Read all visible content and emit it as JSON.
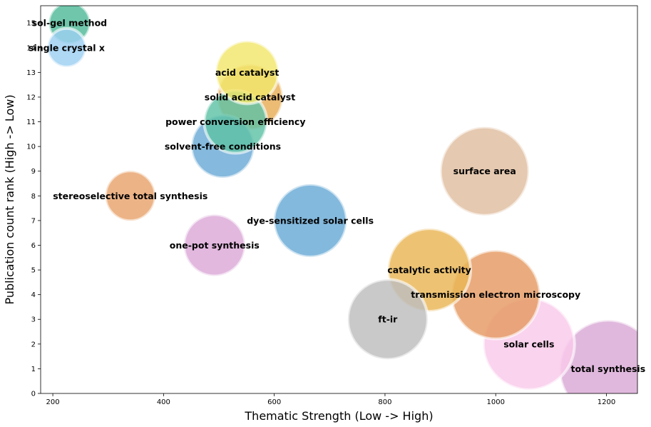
{
  "chart_data": {
    "type": "scatter",
    "title": "",
    "xlabel": "Thematic Strength (Low -> High)",
    "ylabel": "Publication count rank (High -> Low)",
    "xlim": [
      178,
      1256
    ],
    "ylim": [
      0,
      15.7
    ],
    "xticks": [
      200,
      400,
      600,
      800,
      1000,
      1200
    ],
    "yticks": [
      0,
      1,
      2,
      3,
      4,
      5,
      6,
      7,
      8,
      9,
      10,
      11,
      12,
      13,
      14,
      15
    ],
    "grid": false,
    "points": [
      {
        "label": "total synthesis",
        "x": 1203,
        "y": 1,
        "size": 68,
        "color": "#d9a8d6"
      },
      {
        "label": "solar cells",
        "x": 1060,
        "y": 2,
        "size": 64,
        "color": "#f9c9ea"
      },
      {
        "label": "ft-ir",
        "x": 805,
        "y": 3,
        "size": 56,
        "color": "#bdbdbd"
      },
      {
        "label": "transmission electron microscopy",
        "x": 1000,
        "y": 4,
        "size": 62,
        "color": "#e59a62"
      },
      {
        "label": "catalytic activity",
        "x": 880,
        "y": 5,
        "size": 58,
        "color": "#e9b654"
      },
      {
        "label": "one-pot synthesis",
        "x": 492,
        "y": 6,
        "size": 43,
        "color": "#dca8d8"
      },
      {
        "label": "dye-sensitized solar cells",
        "x": 665,
        "y": 7,
        "size": 51,
        "color": "#68aad6"
      },
      {
        "label": "stereoselective total synthesis",
        "x": 340,
        "y": 8,
        "size": 35,
        "color": "#e8a26b"
      },
      {
        "label": "surface area",
        "x": 980,
        "y": 9,
        "size": 62,
        "color": "#dfbd9f"
      },
      {
        "label": "solvent-free conditions",
        "x": 507,
        "y": 10,
        "size": 44,
        "color": "#6aaad6"
      },
      {
        "label": "power conversion efficiency",
        "x": 530,
        "y": 11,
        "size": 44,
        "color": "#5fc2a6"
      },
      {
        "label": "solid acid catalyst",
        "x": 556,
        "y": 12,
        "size": 46,
        "color": "#e8ad57"
      },
      {
        "label": "acid catalyst",
        "x": 551,
        "y": 13,
        "size": 44,
        "color": "#f1e66b"
      },
      {
        "label": "single crystal x",
        "x": 225,
        "y": 14,
        "size": 27,
        "color": "#9ccff1"
      },
      {
        "label": "sol-gel method",
        "x": 230,
        "y": 15,
        "size": 29,
        "color": "#4fba99"
      }
    ]
  }
}
